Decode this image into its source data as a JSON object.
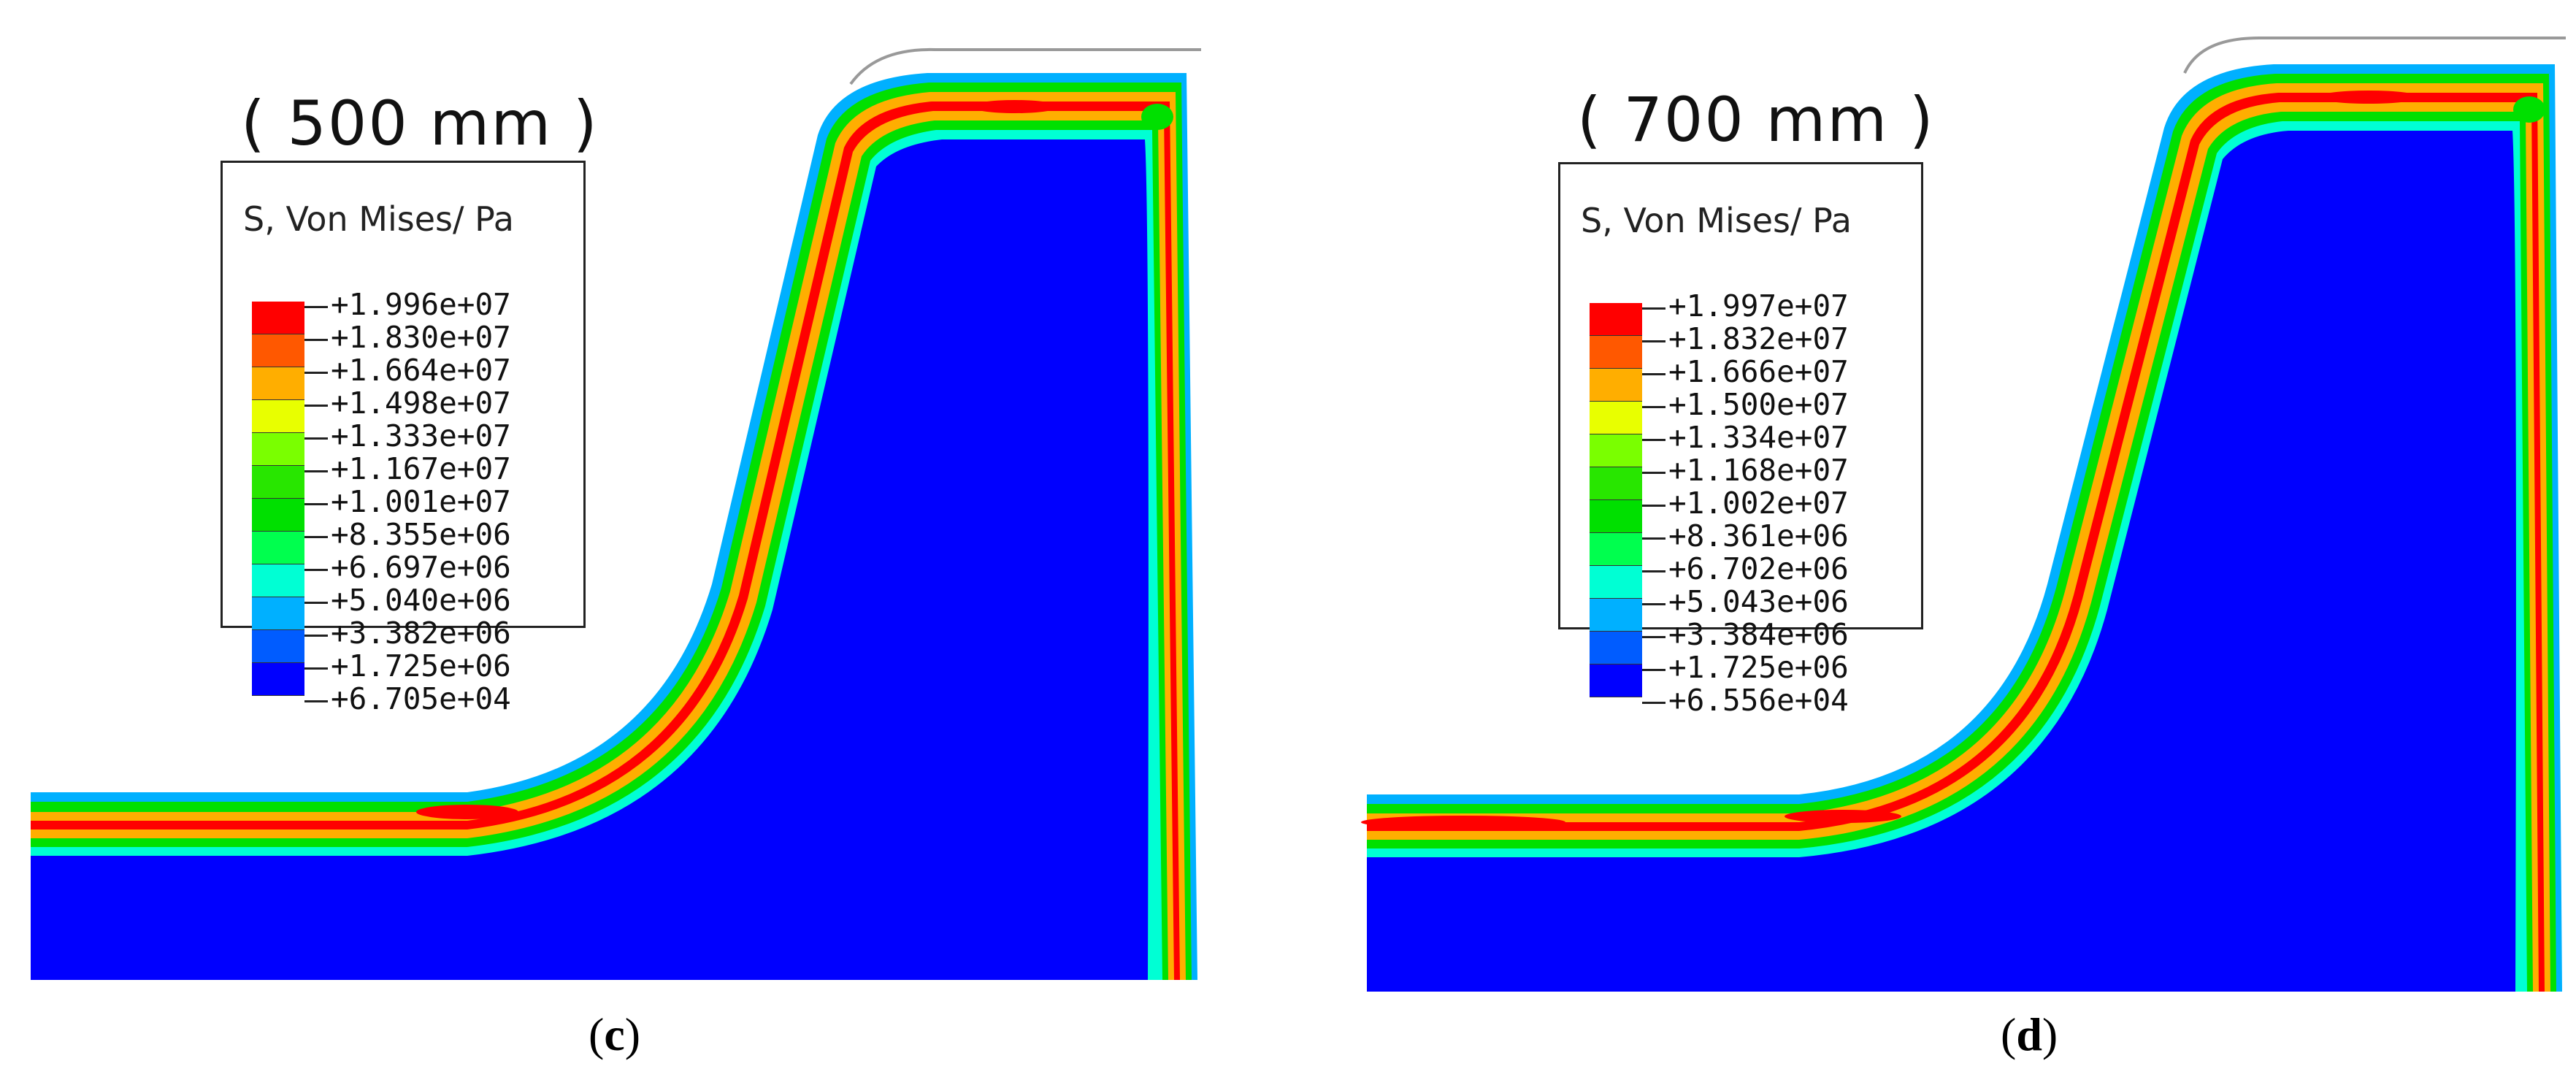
{
  "legend_colors": [
    "#ff0000",
    "#ff5800",
    "#ffae00",
    "#e8ff00",
    "#7aff00",
    "#28e600",
    "#00e000",
    "#00ff4e",
    "#00ffd4",
    "#00b0ff",
    "#005cff",
    "#0000ff"
  ],
  "panels": [
    {
      "distance": "( 500 mm )",
      "legend_title": "S, Von Mises/ Pa",
      "legend_values": [
        "+1.996e+07",
        "+1.830e+07",
        "+1.664e+07",
        "+1.498e+07",
        "+1.333e+07",
        "+1.167e+07",
        "+1.001e+07",
        "+8.355e+06",
        "+6.697e+06",
        "+5.040e+06",
        "+3.382e+06",
        "+1.725e+06",
        "+6.705e+04"
      ],
      "caption_letter": "c"
    },
    {
      "distance": "( 700 mm )",
      "legend_title": "S, Von Mises/ Pa",
      "legend_values": [
        "+1.997e+07",
        "+1.832e+07",
        "+1.666e+07",
        "+1.500e+07",
        "+1.334e+07",
        "+1.168e+07",
        "+1.002e+07",
        "+8.361e+06",
        "+6.702e+06",
        "+5.043e+06",
        "+3.384e+06",
        "+1.725e+06",
        "+6.556e+04"
      ],
      "caption_letter": "d"
    }
  ]
}
